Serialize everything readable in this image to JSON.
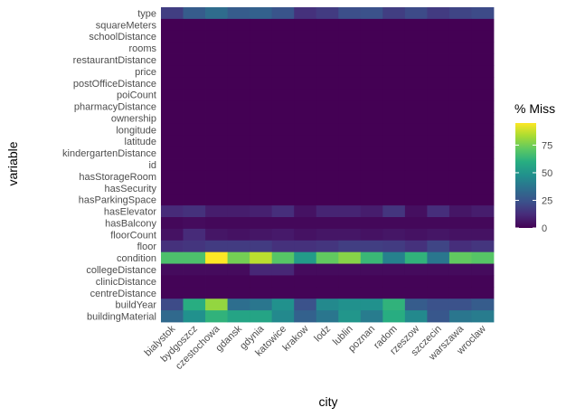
{
  "chart_data": {
    "type": "heatmap",
    "xlabel": "city",
    "ylabel": "variable",
    "x": [
      "bialystok",
      "bydgoszcz",
      "czestochowa",
      "gdansk",
      "gdynia",
      "katowice",
      "krakow",
      "lodz",
      "lublin",
      "poznan",
      "radom",
      "rzeszow",
      "szczecin",
      "warszawa",
      "wroclaw"
    ],
    "y": [
      "type",
      "squareMeters",
      "schoolDistance",
      "rooms",
      "restaurantDistance",
      "price",
      "postOfficeDistance",
      "poiCount",
      "pharmacyDistance",
      "ownership",
      "longitude",
      "latitude",
      "kindergartenDistance",
      "id",
      "hasStorageRoom",
      "hasSecurity",
      "hasParkingSpace",
      "hasElevator",
      "hasBalcony",
      "floorCount",
      "floor",
      "condition",
      "collegeDistance",
      "clinicDistance",
      "centreDistance",
      "buildYear",
      "buildingMaterial"
    ],
    "values": [
      [
        18,
        28,
        34,
        28,
        30,
        25,
        14,
        17,
        23,
        24,
        18,
        22,
        17,
        20,
        22
      ],
      [
        0,
        0,
        0,
        0,
        0,
        0,
        0,
        0,
        0,
        0,
        0,
        0,
        0,
        0,
        0
      ],
      [
        0,
        0,
        0,
        0,
        0,
        0,
        0,
        0,
        0,
        0,
        0,
        0,
        0,
        0,
        0
      ],
      [
        0,
        0,
        0,
        0,
        0,
        0,
        0,
        0,
        0,
        0,
        0,
        0,
        0,
        0,
        0
      ],
      [
        0,
        0,
        0,
        0,
        0,
        0,
        0,
        0,
        0,
        0,
        0,
        0,
        0,
        0,
        0
      ],
      [
        0,
        0,
        0,
        0,
        0,
        0,
        0,
        0,
        0,
        0,
        0,
        0,
        0,
        0,
        0
      ],
      [
        0,
        0,
        0,
        0,
        0,
        0,
        0,
        0,
        0,
        0,
        0,
        0,
        0,
        0,
        0
      ],
      [
        0,
        0,
        0,
        0,
        0,
        0,
        0,
        0,
        0,
        0,
        0,
        0,
        0,
        0,
        0
      ],
      [
        0,
        0,
        0,
        0,
        0,
        0,
        0,
        0,
        0,
        0,
        0,
        0,
        0,
        0,
        0
      ],
      [
        0,
        0,
        0,
        0,
        0,
        0,
        0,
        0,
        0,
        0,
        0,
        0,
        0,
        0,
        0
      ],
      [
        0,
        0,
        0,
        0,
        0,
        0,
        0,
        0,
        0,
        0,
        0,
        0,
        0,
        0,
        0
      ],
      [
        0,
        0,
        0,
        0,
        0,
        0,
        0,
        0,
        0,
        0,
        0,
        0,
        0,
        0,
        0
      ],
      [
        0,
        0,
        0,
        0,
        0,
        0,
        0,
        0,
        0,
        0,
        0,
        0,
        0,
        0,
        0
      ],
      [
        0,
        0,
        0,
        0,
        0,
        0,
        0,
        0,
        0,
        0,
        0,
        0,
        0,
        0,
        0
      ],
      [
        0,
        0,
        0,
        0,
        0,
        0,
        0,
        0,
        0,
        0,
        0,
        0,
        0,
        0,
        0
      ],
      [
        0,
        0,
        0,
        0,
        0,
        0,
        0,
        0,
        0,
        0,
        0,
        0,
        0,
        0,
        0
      ],
      [
        0,
        0,
        0,
        0,
        0,
        0,
        0,
        0,
        0,
        0,
        0,
        0,
        0,
        0,
        0
      ],
      [
        12,
        14,
        8,
        8,
        9,
        13,
        5,
        10,
        10,
        8,
        15,
        4,
        13,
        6,
        8
      ],
      [
        2,
        3,
        2,
        2,
        2,
        2,
        2,
        2,
        2,
        2,
        2,
        2,
        2,
        2,
        2
      ],
      [
        5,
        12,
        6,
        5,
        6,
        7,
        5,
        6,
        6,
        5,
        6,
        5,
        6,
        5,
        5
      ],
      [
        14,
        15,
        17,
        17,
        17,
        14,
        14,
        15,
        18,
        18,
        17,
        14,
        20,
        13,
        15
      ],
      [
        68,
        68,
        95,
        75,
        86,
        70,
        52,
        72,
        78,
        64,
        42,
        62,
        38,
        72,
        70
      ],
      [
        3,
        3,
        3,
        3,
        11,
        11,
        3,
        3,
        3,
        3,
        3,
        3,
        3,
        3,
        3
      ],
      [
        1,
        1,
        1,
        1,
        1,
        1,
        1,
        1,
        1,
        1,
        1,
        1,
        1,
        1,
        1
      ],
      [
        1,
        1,
        1,
        1,
        1,
        1,
        1,
        1,
        1,
        1,
        1,
        1,
        1,
        1,
        1
      ],
      [
        22,
        60,
        80,
        35,
        38,
        48,
        24,
        45,
        48,
        48,
        62,
        28,
        24,
        24,
        28
      ],
      [
        33,
        48,
        62,
        56,
        56,
        45,
        30,
        38,
        50,
        40,
        60,
        45,
        26,
        38,
        40
      ]
    ],
    "scale_min": 0,
    "scale_max": 95,
    "legend": {
      "title": "% Miss",
      "ticks": [
        0,
        25,
        50,
        75
      ],
      "placement": "right"
    },
    "grid": false
  }
}
